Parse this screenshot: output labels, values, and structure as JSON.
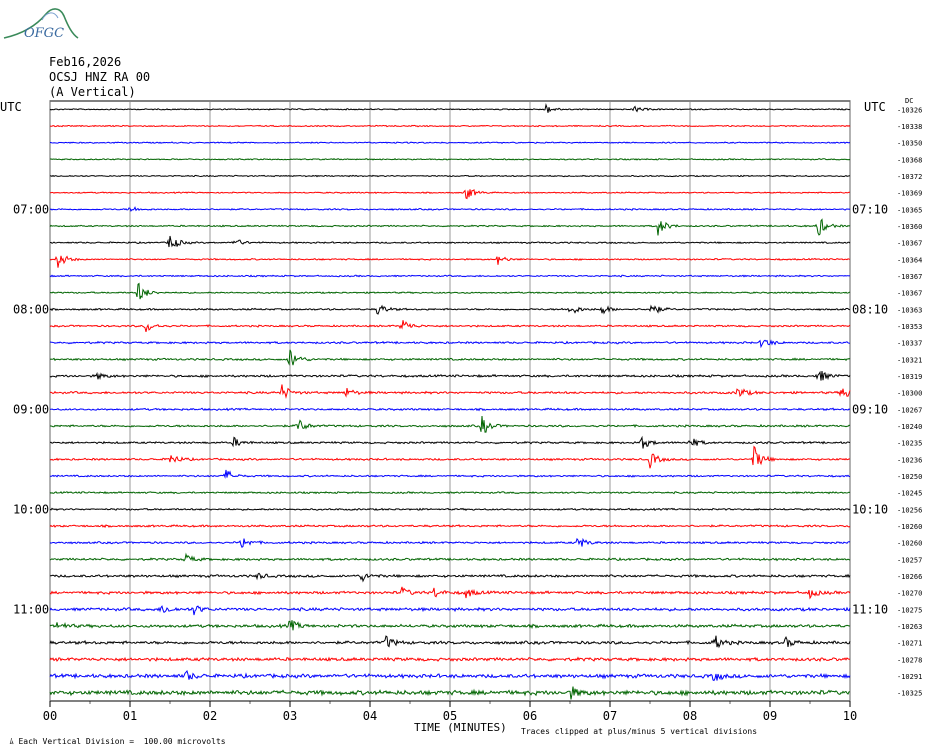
{
  "logo": {
    "text": "OFGC",
    "icon": "mountain-logo-icon",
    "color": "#3a8a5a"
  },
  "header": {
    "date": "Feb16,2026",
    "station": "OCSJ HNZ RA 00",
    "component": "(A Vertical)"
  },
  "left_axis_label": "UTC",
  "right_axis_label": "UTC",
  "right_top_marker": "DC",
  "footer": {
    "scale_note": "Each Vertical Division =  100.00 microvolts",
    "clip_note": "Traces clipped at plus/minus 5 vertical divisions"
  },
  "chart_data": {
    "type": "line",
    "title": "",
    "xlabel": "TIME (MINUTES)",
    "ylabel": "",
    "xlim": [
      0,
      10
    ],
    "x_ticks": [
      "00",
      "01",
      "02",
      "03",
      "04",
      "05",
      "06",
      "07",
      "08",
      "09",
      "10"
    ],
    "grid": true,
    "trace_colors": [
      "#000000",
      "#ff0000",
      "#0000ff",
      "#006400"
    ],
    "left_time_labels": [
      {
        "row": 6,
        "label": "07:00"
      },
      {
        "row": 12,
        "label": "08:00"
      },
      {
        "row": 18,
        "label": "09:00"
      },
      {
        "row": 24,
        "label": "10:00"
      },
      {
        "row": 30,
        "label": "11:00"
      }
    ],
    "right_time_labels": [
      {
        "row": 6,
        "label": "07:10"
      },
      {
        "row": 12,
        "label": "08:10"
      },
      {
        "row": 18,
        "label": "09:10"
      },
      {
        "row": 24,
        "label": "10:10"
      },
      {
        "row": 30,
        "label": "11:10"
      }
    ],
    "dc_offsets": [
      "-10326",
      "-10338",
      "-10350",
      "-10368",
      "-10372",
      "-10369",
      "-10365",
      "-10360",
      "-10367",
      "-10364",
      "-10367",
      "-10367",
      "-10363",
      "-10353",
      "-10337",
      "-10321",
      "-10319",
      "-10300",
      "-10267",
      "-10240",
      "-10235",
      "-10236",
      "-10250",
      "-10245",
      "-10256",
      "-10260",
      "-10260",
      "-10257",
      "-10266",
      "-10270",
      "-10275",
      "-10263",
      "-10271",
      "-10278",
      "-10291",
      "-10325"
    ],
    "noise_amplitude": [
      0.5,
      0.5,
      0.5,
      0.5,
      0.5,
      0.5,
      0.6,
      0.6,
      0.6,
      0.6,
      0.6,
      0.6,
      0.7,
      0.7,
      0.8,
      0.8,
      0.9,
      0.9,
      0.8,
      0.8,
      0.8,
      0.8,
      0.7,
      0.7,
      0.7,
      0.8,
      0.8,
      0.9,
      1.0,
      1.1,
      1.2,
      1.2,
      1.2,
      1.3,
      1.5,
      1.8
    ],
    "events": [
      {
        "row": 0,
        "minute": 6.2,
        "amp": 3
      },
      {
        "row": 0,
        "minute": 7.3,
        "amp": 2
      },
      {
        "row": 5,
        "minute": 5.2,
        "amp": 5
      },
      {
        "row": 6,
        "minute": 1.0,
        "amp": 2
      },
      {
        "row": 7,
        "minute": 7.6,
        "amp": 6
      },
      {
        "row": 7,
        "minute": 9.6,
        "amp": 7
      },
      {
        "row": 8,
        "minute": 1.5,
        "amp": 6
      },
      {
        "row": 8,
        "minute": 2.3,
        "amp": 3
      },
      {
        "row": 9,
        "minute": 0.1,
        "amp": 6
      },
      {
        "row": 9,
        "minute": 5.6,
        "amp": 3
      },
      {
        "row": 11,
        "minute": 1.1,
        "amp": 7
      },
      {
        "row": 12,
        "minute": 4.1,
        "amp": 4
      },
      {
        "row": 12,
        "minute": 6.5,
        "amp": 4
      },
      {
        "row": 12,
        "minute": 6.9,
        "amp": 3
      },
      {
        "row": 12,
        "minute": 7.5,
        "amp": 5
      },
      {
        "row": 13,
        "minute": 1.2,
        "amp": 4
      },
      {
        "row": 13,
        "minute": 4.4,
        "amp": 5
      },
      {
        "row": 14,
        "minute": 8.9,
        "amp": 4
      },
      {
        "row": 15,
        "minute": 3.0,
        "amp": 7
      },
      {
        "row": 16,
        "minute": 0.6,
        "amp": 2
      },
      {
        "row": 16,
        "minute": 9.6,
        "amp": 5
      },
      {
        "row": 17,
        "minute": 2.9,
        "amp": 5
      },
      {
        "row": 17,
        "minute": 3.7,
        "amp": 3
      },
      {
        "row": 17,
        "minute": 8.6,
        "amp": 4
      },
      {
        "row": 17,
        "minute": 9.9,
        "amp": 5
      },
      {
        "row": 19,
        "minute": 3.1,
        "amp": 5
      },
      {
        "row": 19,
        "minute": 5.4,
        "amp": 6
      },
      {
        "row": 20,
        "minute": 2.3,
        "amp": 3
      },
      {
        "row": 20,
        "minute": 7.4,
        "amp": 4
      },
      {
        "row": 20,
        "minute": 8.0,
        "amp": 4
      },
      {
        "row": 21,
        "minute": 1.5,
        "amp": 4
      },
      {
        "row": 21,
        "minute": 7.5,
        "amp": 5
      },
      {
        "row": 21,
        "minute": 8.8,
        "amp": 8
      },
      {
        "row": 22,
        "minute": 2.2,
        "amp": 4
      },
      {
        "row": 26,
        "minute": 2.4,
        "amp": 4
      },
      {
        "row": 26,
        "minute": 6.6,
        "amp": 4
      },
      {
        "row": 27,
        "minute": 1.7,
        "amp": 3
      },
      {
        "row": 28,
        "minute": 2.6,
        "amp": 2
      },
      {
        "row": 28,
        "minute": 3.9,
        "amp": 3
      },
      {
        "row": 29,
        "minute": 4.4,
        "amp": 3
      },
      {
        "row": 29,
        "minute": 4.8,
        "amp": 3
      },
      {
        "row": 29,
        "minute": 5.2,
        "amp": 3
      },
      {
        "row": 29,
        "minute": 9.5,
        "amp": 3
      },
      {
        "row": 30,
        "minute": 1.4,
        "amp": 3
      },
      {
        "row": 30,
        "minute": 1.8,
        "amp": 3
      },
      {
        "row": 31,
        "minute": 0.1,
        "amp": 3
      },
      {
        "row": 31,
        "minute": 3.0,
        "amp": 4
      },
      {
        "row": 32,
        "minute": 4.2,
        "amp": 4
      },
      {
        "row": 32,
        "minute": 8.3,
        "amp": 5
      },
      {
        "row": 32,
        "minute": 9.2,
        "amp": 3
      },
      {
        "row": 34,
        "minute": 1.7,
        "amp": 3
      },
      {
        "row": 34,
        "minute": 8.3,
        "amp": 3
      },
      {
        "row": 35,
        "minute": 6.5,
        "amp": 4
      }
    ]
  }
}
